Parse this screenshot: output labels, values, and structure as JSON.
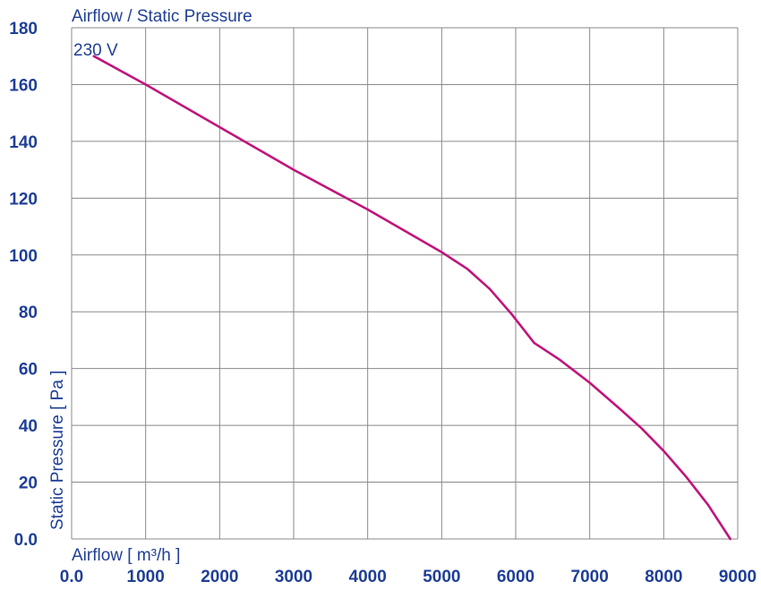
{
  "chart_data": {
    "type": "line",
    "title": "Airflow / Static Pressure",
    "xlabel": "Airflow [ m³/h ]",
    "ylabel": "Static Pressure [ Pa ]",
    "xlim": [
      0,
      9000
    ],
    "ylim": [
      0,
      180
    ],
    "x_ticks": [
      "0.0",
      "1000",
      "2000",
      "3000",
      "4000",
      "5000",
      "6000",
      "7000",
      "8000",
      "9000"
    ],
    "y_ticks": [
      "0.0",
      "20",
      "40",
      "60",
      "80",
      "100",
      "120",
      "140",
      "160",
      "180"
    ],
    "grid": true,
    "series": [
      {
        "name": "230 V",
        "color": "#c0157c",
        "x": [
          300,
          1000,
          2000,
          3000,
          4000,
          5000,
          5350,
          5650,
          5950,
          6250,
          6600,
          7000,
          7400,
          7700,
          8000,
          8300,
          8600,
          8900
        ],
        "y": [
          170,
          160,
          145,
          130,
          116,
          101,
          95,
          88,
          79,
          69,
          63,
          55,
          46,
          39,
          31,
          22,
          12,
          0
        ]
      }
    ]
  },
  "colors": {
    "text": "#1f3f97",
    "grid": "#8a8a8a",
    "series": "#c0157c"
  }
}
